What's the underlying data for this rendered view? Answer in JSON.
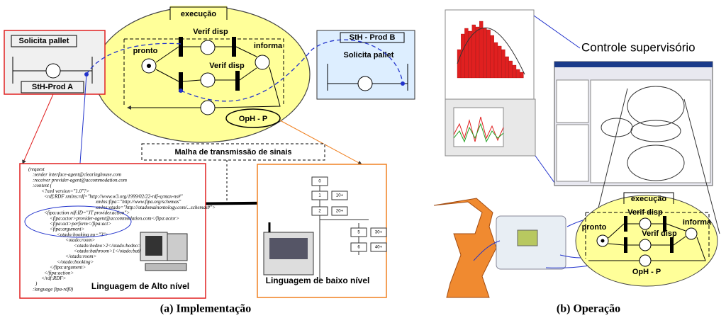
{
  "panel_a": {
    "left_box": {
      "title": "Solicita pallet",
      "name": "StH-Prod A"
    },
    "petri": {
      "header": "execução",
      "pronto": "pronto",
      "verif_top": "Verif disp",
      "verif_bottom": "Verif disp",
      "informa": "informa",
      "oph": "OpH - P"
    },
    "right_box": {
      "name": "StH - Prod B",
      "title": "Solicita pallet"
    },
    "network": "Malha de transmissão de sinais",
    "code_lines": [
      "(request",
      ":sender interface-agent@clearinghouse.com",
      ":receiver provider-agent@accommodation.com",
      ":content (",
      "<?xml version=\"1.0\"?>",
      "<rdf:RDF      xmlns:rdf=\"http://www.w3.org/1999/02/22-rdf-syntax-ns#\"",
      "xmlns:fipa=\"http://www.fipa.org/schemas\"",
      "xmlns:otado=\"http://otadomainontology.com/...schemas#\">",
      "<fipa:action rdf:ID=\"JT provider.action\">",
      "<fipa:actor>provider-agent@accommodation.com</fipa:actor>",
      "<fipa:act>perform</fipa:act>",
      "<fipa:argument>",
      "<otado:booking no=\"3\">",
      "<otado:room>",
      "<otado:bedno>2</otado:bedno>",
      "<otado:bathroom>1</otado:bathroom>",
      "</otado:room>",
      "</otado:booking>",
      "</fipa:argument>",
      "</fipa:action>",
      "</rdf:RDF>",
      ")",
      ":language fipa-rdf0)"
    ],
    "high_level": "Linguagem de Alto nível",
    "grafcet": {
      "steps": [
        "0",
        "1",
        "2",
        "5",
        "6"
      ],
      "actions": [
        "10+",
        "20+",
        "30+",
        "40+"
      ]
    },
    "low_level": "Linguagem de baixo nível",
    "caption": "(a) Implementação"
  },
  "panel_b": {
    "supervisory": "Controle supervisório",
    "petri": {
      "header": "execução",
      "pronto": "pronto",
      "verif_top": "Verif disp",
      "verif_bottom": "Verif disp",
      "informa": "informa",
      "oph": "OpH - P"
    },
    "caption": "(b) Operação"
  }
}
